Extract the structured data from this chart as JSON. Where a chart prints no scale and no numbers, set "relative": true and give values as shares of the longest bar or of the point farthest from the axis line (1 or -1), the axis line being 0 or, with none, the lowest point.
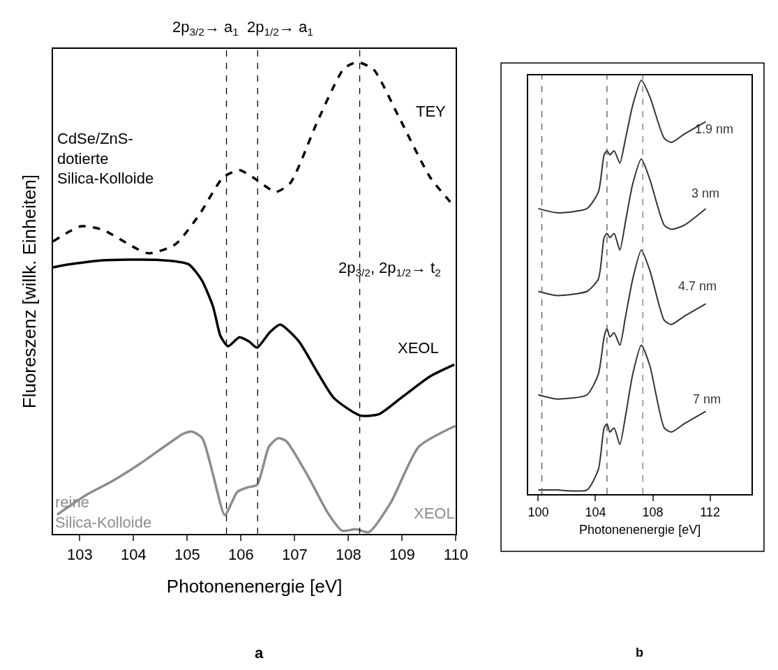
{
  "chart_data": [
    {
      "type": "line",
      "relative": true,
      "xlabel": "Photonenenergie [eV]",
      "ylabel": "Fluoreszenz [willk. Einheiten]",
      "xlim": [
        102.5,
        110
      ],
      "xticks": [
        103,
        104,
        105,
        106,
        107,
        108,
        109,
        110
      ],
      "marker": "none",
      "series": [
        {
          "name": "TEY",
          "color": "#000000",
          "line_style": "dashed",
          "x": [
            102.5,
            103.02,
            103.42,
            104.27,
            104.78,
            105.22,
            105.67,
            105.97,
            106.22,
            106.65,
            106.92,
            107.43,
            107.92,
            108.17,
            108.47,
            108.92,
            109.52,
            109.97
          ],
          "values": [
            0.62,
            0.652,
            0.645,
            0.595,
            0.614,
            0.676,
            0.756,
            0.771,
            0.756,
            0.725,
            0.744,
            0.876,
            0.987,
            1.0,
            0.984,
            0.888,
            0.756,
            0.694
          ]
        },
        {
          "name": "XEOL",
          "color": "#000000",
          "line_style": "solid",
          "x": [
            102.5,
            102.72,
            103.42,
            104.42,
            105.02,
            105.27,
            105.48,
            105.62,
            105.76,
            105.97,
            106.15,
            106.3,
            106.54,
            106.73,
            107.08,
            107.38,
            107.73,
            108.22,
            108.57,
            108.92,
            109.52,
            109.97
          ],
          "values": [
            0.565,
            0.57,
            0.58,
            0.581,
            0.572,
            0.538,
            0.482,
            0.419,
            0.398,
            0.417,
            0.408,
            0.395,
            0.428,
            0.444,
            0.408,
            0.351,
            0.288,
            0.251,
            0.254,
            0.283,
            0.334,
            0.359
          ]
        },
        {
          "name": "XEOL",
          "color": "#8c8c8c",
          "line_style": "solid",
          "x": [
            102.58,
            103.14,
            103.59,
            104.11,
            104.57,
            104.92,
            105.09,
            105.28,
            105.48,
            105.7,
            105.93,
            106.13,
            106.3,
            106.52,
            106.69,
            106.84,
            107.23,
            107.62,
            107.88,
            108.14,
            108.38,
            108.79,
            109.31,
            109.99
          ],
          "values": [
            0.041,
            0.084,
            0.111,
            0.148,
            0.185,
            0.212,
            0.217,
            0.203,
            0.126,
            0.04,
            0.089,
            0.099,
            0.104,
            0.185,
            0.203,
            0.197,
            0.126,
            0.044,
            0.007,
            0.01,
            0.004,
            0.067,
            0.185,
            0.229
          ]
        }
      ],
      "ref_lines": [
        {
          "axis": "x",
          "value": 105.73,
          "label": "2p$_{3/2}$→ a$_{1}$",
          "line_style": "dashed",
          "color": "#000000"
        },
        {
          "axis": "x",
          "value": 106.31,
          "label": "2p$_{1/2}$→ a$_{1}$",
          "line_style": "dashed",
          "color": "#000000"
        },
        {
          "axis": "x",
          "value": 108.21,
          "label": "2p$_{3/2}$, 2p$_{1/2}$→ t$_{2}$",
          "line_style": "dashed",
          "color": "#000000"
        }
      ],
      "annotations": [
        "CdSe/ZnS-\ndotierte\nSilica-Kolloide",
        "reine\nSilica-Kolloide",
        "a"
      ]
    },
    {
      "type": "line",
      "relative": true,
      "xlabel": "Photonenenergie [eV]",
      "xlim": [
        99.3,
        114.9
      ],
      "xticks": [
        100,
        104,
        108,
        112
      ],
      "marker": "none",
      "series": [
        {
          "name": "1.9 nm",
          "color": "#333333",
          "x": [
            100.0,
            101.3,
            103.4,
            104.2,
            104.6,
            104.8,
            105.0,
            105.3,
            105.7,
            106.1,
            106.6,
            107.2,
            107.8,
            108.8,
            109.3,
            110.2,
            111.7
          ],
          "values": [
            0.69,
            0.68,
            0.69,
            0.73,
            0.82,
            0.83,
            0.82,
            0.83,
            0.8,
            0.86,
            0.94,
            1.0,
            0.96,
            0.86,
            0.85,
            0.87,
            0.9
          ]
        },
        {
          "name": "3 nm",
          "color": "#333333",
          "x": [
            100.0,
            101.3,
            103.4,
            104.2,
            104.6,
            104.8,
            105.0,
            105.3,
            105.7,
            106.1,
            106.6,
            107.2,
            107.8,
            108.8,
            109.3,
            110.2,
            111.7
          ],
          "values": [
            0.49,
            0.48,
            0.49,
            0.52,
            0.62,
            0.63,
            0.62,
            0.63,
            0.59,
            0.66,
            0.75,
            0.81,
            0.76,
            0.65,
            0.64,
            0.65,
            0.69
          ]
        },
        {
          "name": "4.7 nm",
          "color": "#333333",
          "x": [
            100.0,
            101.3,
            103.4,
            104.2,
            104.6,
            104.8,
            105.0,
            105.3,
            105.7,
            106.1,
            106.6,
            107.2,
            107.8,
            108.8,
            109.3,
            110.2,
            111.7
          ],
          "values": [
            0.24,
            0.23,
            0.24,
            0.29,
            0.38,
            0.4,
            0.38,
            0.39,
            0.36,
            0.43,
            0.52,
            0.59,
            0.54,
            0.42,
            0.41,
            0.43,
            0.46
          ]
        },
        {
          "name": "7 nm",
          "color": "#333333",
          "x": [
            100.0,
            101.3,
            103.4,
            104.2,
            104.6,
            104.8,
            105.0,
            105.3,
            105.7,
            106.1,
            106.6,
            107.2,
            107.8,
            108.8,
            109.3,
            110.2,
            111.7
          ],
          "values": [
            0.01,
            0.01,
            0.01,
            0.06,
            0.16,
            0.17,
            0.15,
            0.16,
            0.12,
            0.19,
            0.29,
            0.36,
            0.31,
            0.16,
            0.15,
            0.17,
            0.2
          ]
        }
      ],
      "ref_lines": [
        {
          "axis": "x",
          "value": 100.25,
          "line_style": "dashed",
          "color": "#555555"
        },
        {
          "axis": "x",
          "value": 104.8,
          "line_style": "dashed",
          "color": "#555555"
        },
        {
          "axis": "x",
          "value": 107.3,
          "line_style": "dashed",
          "color": "#777777"
        }
      ],
      "annotations": [
        "b"
      ]
    }
  ]
}
